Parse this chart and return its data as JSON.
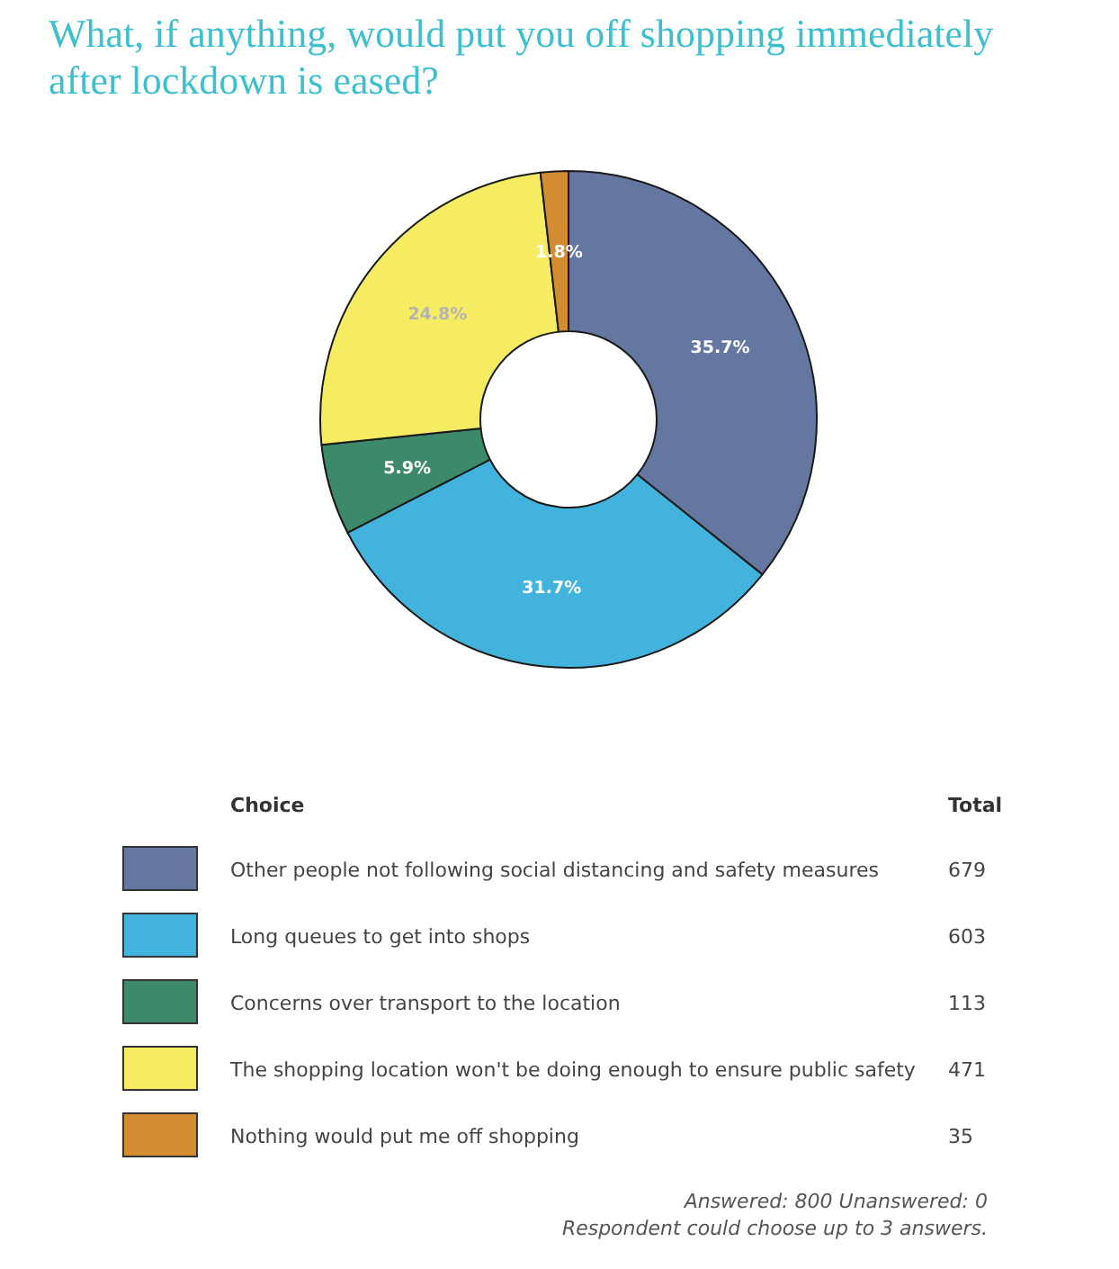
{
  "chart_data": {
    "type": "donut",
    "title": "What, if anything, would put you off shopping immediately after lockdown is eased?",
    "categories": [
      "Other people not following social distancing and safety measures",
      "Long queues to get into shops",
      "Concerns over transport to the location",
      "The shopping location won't be doing enough to ensure public safety",
      "Nothing would put me off shopping"
    ],
    "values": [
      35.7,
      31.7,
      5.9,
      24.8,
      1.8
    ],
    "value_labels": [
      "35.7%",
      "31.7%",
      "5.9%",
      "24.8%",
      "1.8%"
    ],
    "colors": [
      "#6477a0",
      "#41b3dc",
      "#3d8a6a",
      "#f5ec62",
      "#d38c30"
    ],
    "legend": "bottom",
    "legend_title": "Choice",
    "annotations": [
      "Total",
      {
        "text": "679",
        "x": "Other people not following social distancing and safety measures"
      },
      {
        "text": "603",
        "x": "Long queues to get into shops"
      },
      {
        "text": "113",
        "x": "Concerns over transport to the location"
      },
      {
        "text": "471",
        "x": "The shopping location won't be doing enough to ensure public safety"
      },
      {
        "text": "35",
        "x": "Nothing would put me off shopping"
      },
      "Answered: 800 Unanswered: 0",
      "Respondent could choose up to 3 answers."
    ]
  }
}
